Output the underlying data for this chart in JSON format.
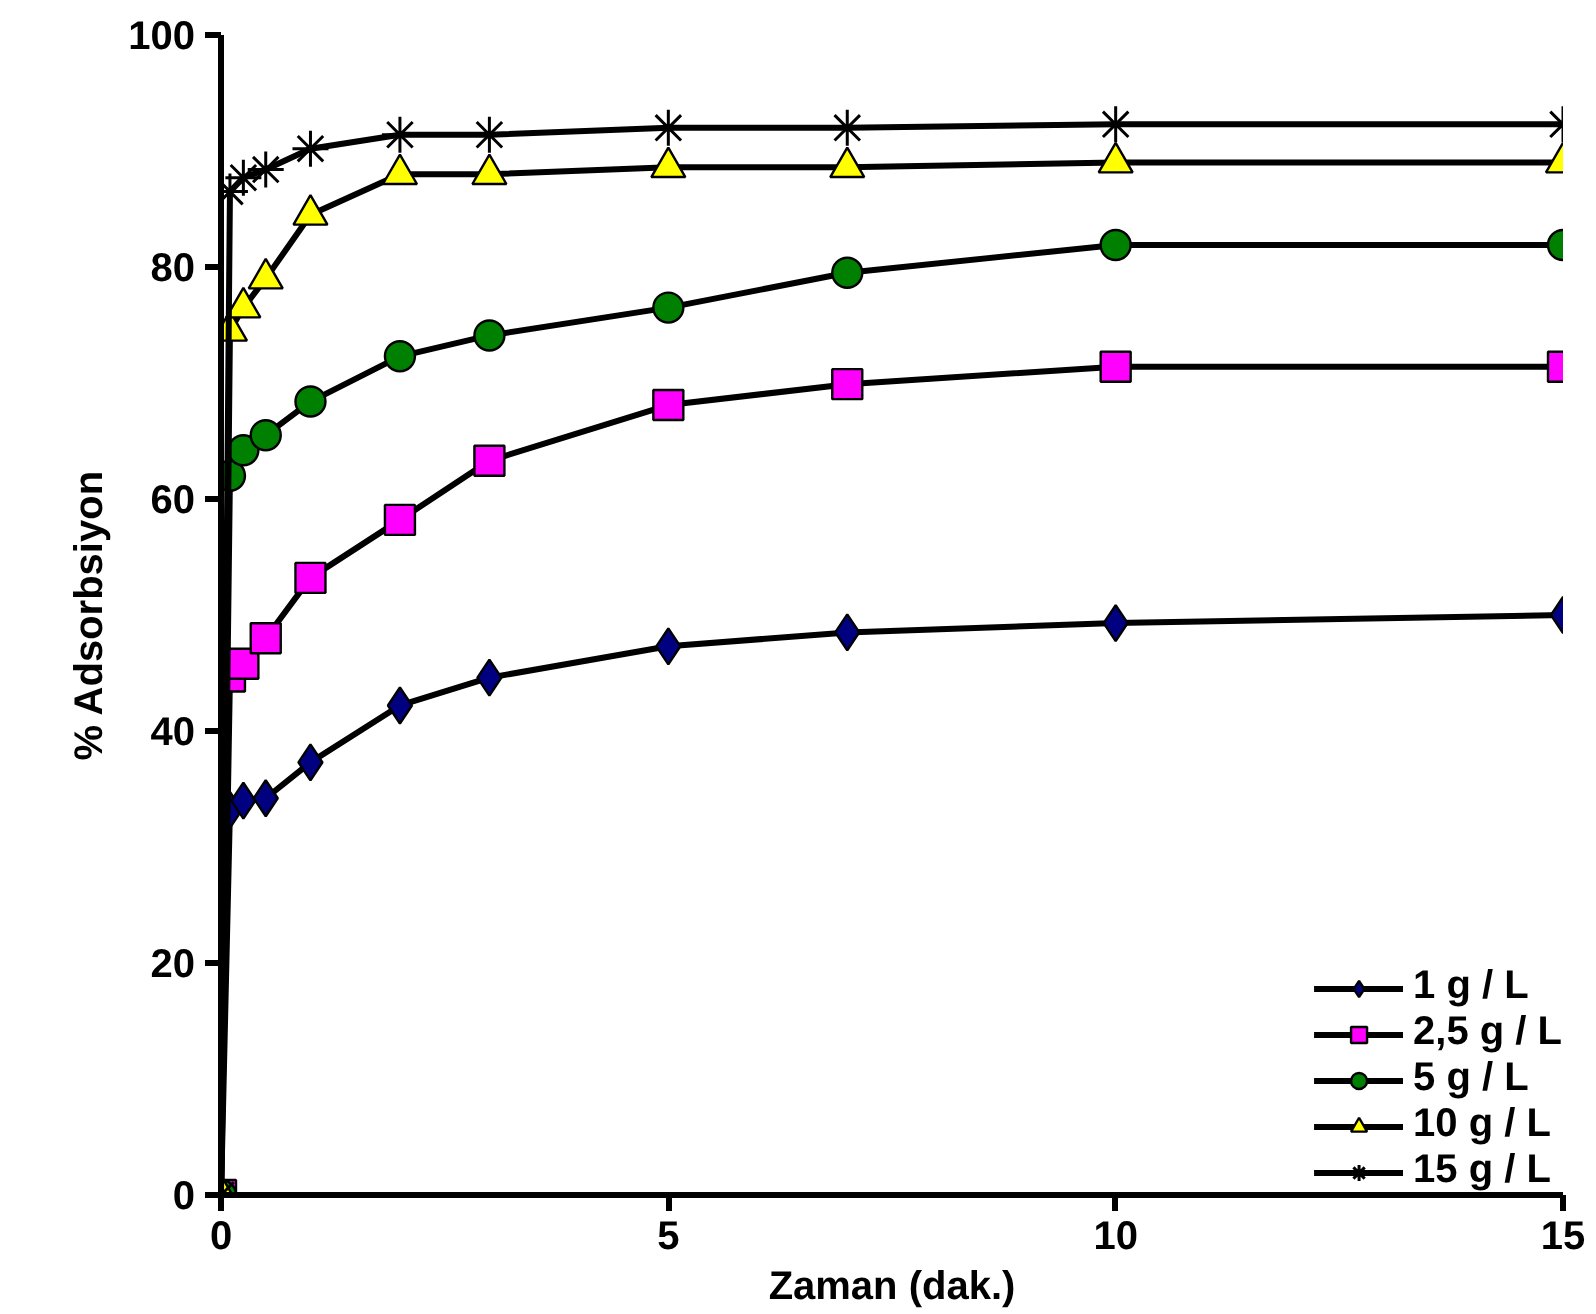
{
  "chart_data": {
    "type": "line",
    "xlabel": "Zaman (dak.)",
    "ylabel": "% Adsorbsiyon",
    "x": [
      0,
      0.1,
      0.25,
      0.5,
      1,
      2,
      3,
      5,
      7,
      10,
      15
    ],
    "xlim": [
      0,
      15
    ],
    "xticks": [
      0,
      5,
      10,
      15
    ],
    "ylim": [
      0,
      100
    ],
    "yticks": [
      0,
      20,
      40,
      60,
      80,
      100
    ],
    "grid": false,
    "legend": "bottom right",
    "line_style": "solid",
    "series": [
      {
        "name": "1 g / L",
        "color": "#000080",
        "marker": "diamond",
        "values": [
          0,
          33.2,
          34,
          34.2,
          37.3,
          42.2,
          44.6,
          47.3,
          48.5,
          49.3,
          50
        ]
      },
      {
        "name": "2,5 g / L",
        "color": "#ff00ff",
        "marker": "square",
        "values": [
          0,
          44.7,
          45.8,
          48,
          53.2,
          58.2,
          63.3,
          68.1,
          69.9,
          71.4,
          71.4
        ]
      },
      {
        "name": "5 g / L",
        "color": "#008000",
        "marker": "circle",
        "values": [
          0,
          62,
          64.2,
          65.5,
          68.4,
          72.3,
          74.1,
          76.5,
          79.5,
          81.9,
          81.9
        ]
      },
      {
        "name": "10 g / L",
        "color": "#ffff00",
        "marker": "triangle",
        "values": [
          0,
          74.5,
          76.5,
          79,
          84.5,
          88,
          88,
          88.6,
          88.6,
          89,
          89
        ]
      },
      {
        "name": "15 g / L",
        "color": "#000000",
        "marker": "cross",
        "values": [
          0,
          86.5,
          87.7,
          88.4,
          90.2,
          91.4,
          91.4,
          92,
          92,
          92.3,
          92.3
        ]
      }
    ]
  }
}
